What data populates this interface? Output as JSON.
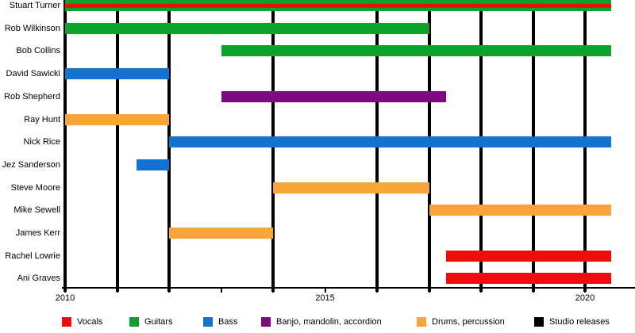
{
  "chart_data": {
    "type": "gantt-timeline",
    "description_visible_text_only": true,
    "x_axis": {
      "range": [
        2010,
        2020.55
      ],
      "tick_years": [
        2010,
        2011,
        2012,
        2013,
        2014,
        2015,
        2016,
        2017,
        2018,
        2019,
        2020
      ],
      "labeled_ticks": [
        {
          "year": 2010,
          "label": "2010"
        },
        {
          "year": 2015,
          "label": "2015"
        },
        {
          "year": 2020,
          "label": "2020"
        }
      ]
    },
    "colors": {
      "vocals": "#ed0d0d",
      "guitars": "#0ba32a",
      "bass": "#1273cf",
      "banjo": "#7b0b80",
      "drums": "#f9a33b",
      "releases": "#000000"
    },
    "members": [
      {
        "name": "Stuart Turner",
        "bars": [
          {
            "role": "guitars",
            "start": 2010,
            "end": 2020.5
          }
        ],
        "stripe": {
          "role": "vocals",
          "start": 2010,
          "end": 2020.5
        }
      },
      {
        "name": "Rob Wilkinson",
        "bars": [
          {
            "role": "guitars",
            "start": 2010,
            "end": 2017
          }
        ]
      },
      {
        "name": "Bob Collins",
        "bars": [
          {
            "role": "guitars",
            "start": 2013,
            "end": 2020.5
          }
        ]
      },
      {
        "name": "David Sawicki",
        "bars": [
          {
            "role": "bass",
            "start": 2010,
            "end": 2012
          }
        ]
      },
      {
        "name": "Rob Shepherd",
        "bars": [
          {
            "role": "banjo",
            "start": 2013,
            "end": 2017.33
          }
        ]
      },
      {
        "name": "Ray Hunt",
        "bars": [
          {
            "role": "drums",
            "start": 2010,
            "end": 2012
          }
        ]
      },
      {
        "name": "Nick Rice",
        "bars": [
          {
            "role": "bass",
            "start": 2012,
            "end": 2020.5
          }
        ]
      },
      {
        "name": "Jez Sanderson",
        "bars": [
          {
            "role": "bass",
            "start": 2011.37,
            "end": 2012
          }
        ]
      },
      {
        "name": "Steve Moore",
        "bars": [
          {
            "role": "drums",
            "start": 2014,
            "end": 2017
          }
        ]
      },
      {
        "name": "Mike Sewell",
        "bars": [
          {
            "role": "drums",
            "start": 2017,
            "end": 2020.5
          }
        ]
      },
      {
        "name": "James Kerr",
        "bars": [
          {
            "role": "drums",
            "start": 2012,
            "end": 2014
          }
        ]
      },
      {
        "name": "Rachel Lowrie",
        "bars": [
          {
            "role": "vocals",
            "start": 2017.33,
            "end": 2020.5
          }
        ]
      },
      {
        "name": "Ani Graves",
        "bars": [
          {
            "role": "vocals",
            "start": 2017.33,
            "end": 2020.5
          }
        ]
      }
    ],
    "studio_release_years": [
      2010,
      2011,
      2012,
      2014,
      2016,
      2017,
      2018,
      2019,
      2020
    ],
    "legend": {
      "items": [
        {
          "label": "Vocals",
          "role": "vocals"
        },
        {
          "label": "Guitars",
          "role": "guitars"
        },
        {
          "label": "Bass",
          "role": "bass"
        },
        {
          "label": "Banjo, mandolin, accordion",
          "role": "banjo"
        },
        {
          "label": "Drums, percussion",
          "role": "drums"
        },
        {
          "label": "Studio releases",
          "role": "releases"
        }
      ]
    }
  }
}
